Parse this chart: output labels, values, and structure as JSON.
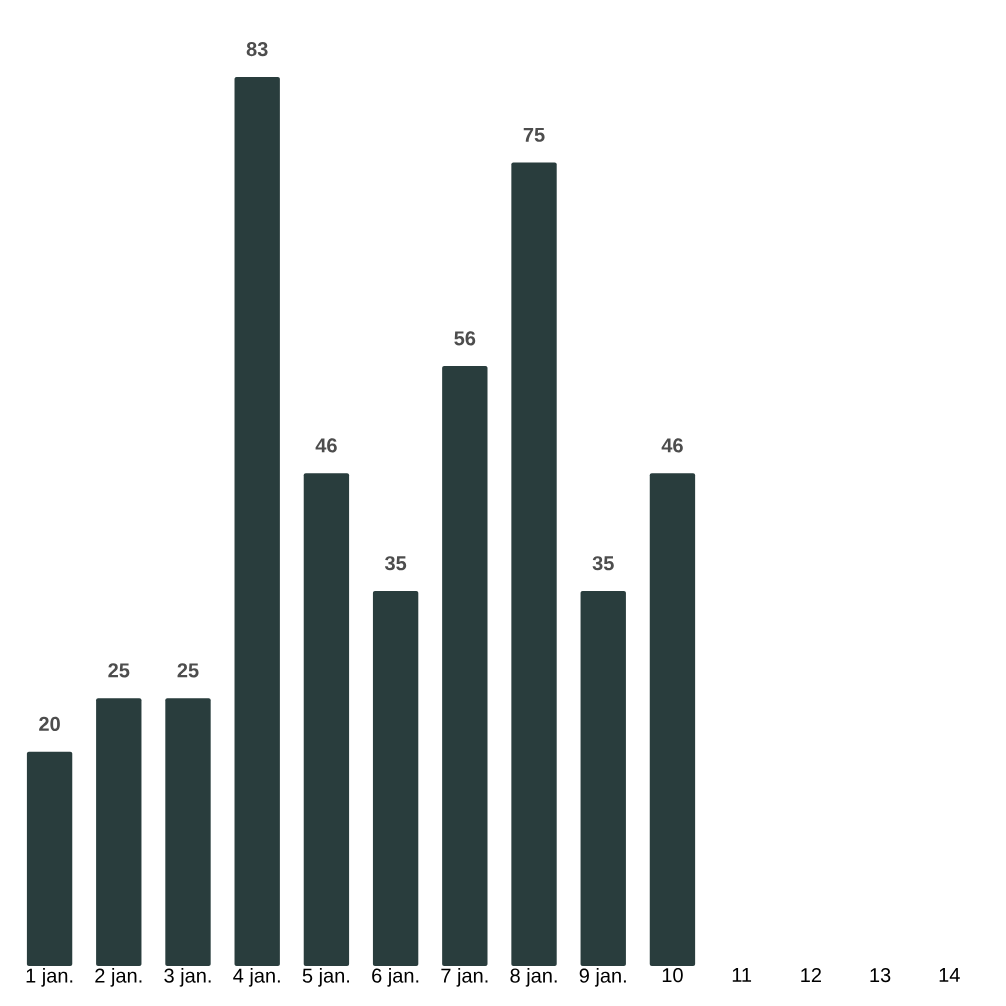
{
  "chart_data": {
    "type": "bar",
    "categories": [
      "1 jan.",
      "2 jan.",
      "3 jan.",
      "4 jan.",
      "5 jan.",
      "6 jan.",
      "7 jan.",
      "8 jan.",
      "9 jan.",
      "10",
      "11",
      "12",
      "13",
      "14"
    ],
    "values": [
      20,
      25,
      25,
      83,
      46,
      35,
      56,
      75,
      35,
      46,
      null,
      null,
      null,
      null
    ],
    "color": "#293d3d",
    "data_labels": true
  }
}
